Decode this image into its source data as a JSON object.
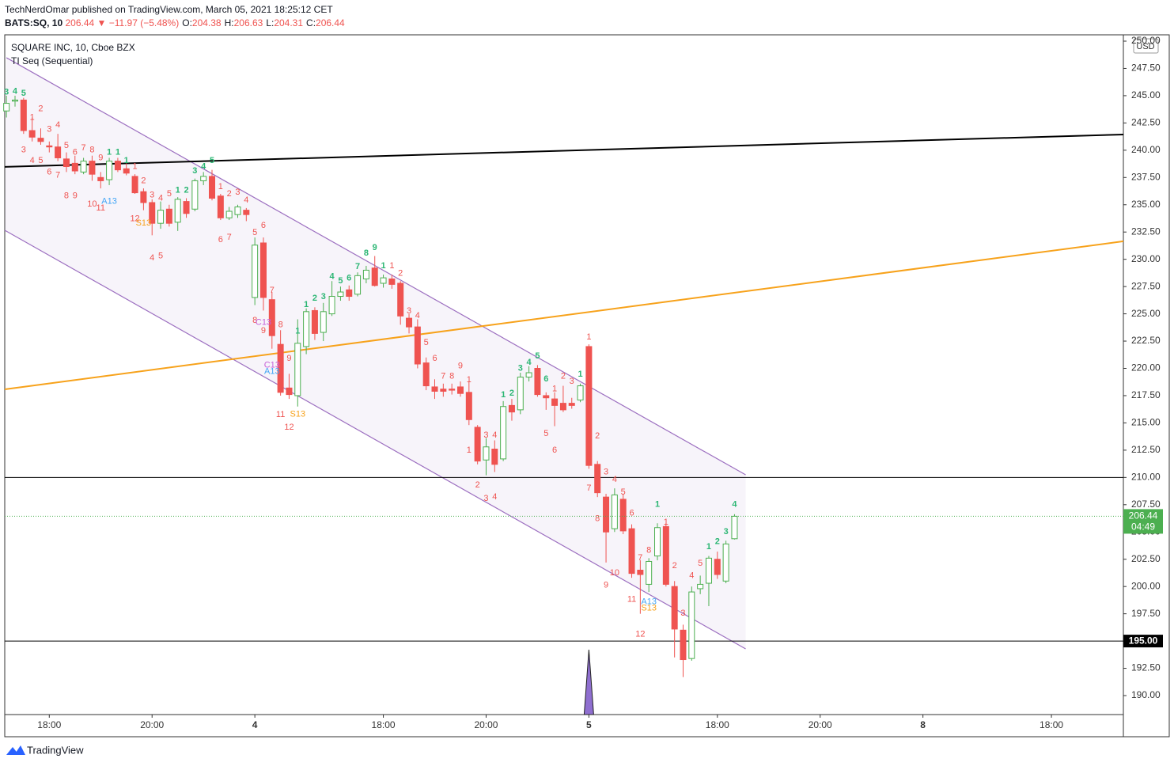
{
  "header": {
    "published": "TechNerdOmar published on TradingView.com, March 05, 2021 18:25:12 CET",
    "symbol": "BATS:SQ, 10",
    "change": "206.44 ▼ −11.97 (−5.48%)",
    "ohlc": [
      {
        "label": "O:",
        "value": "204.38"
      },
      {
        "label": "H:",
        "value": "206.63"
      },
      {
        "label": "L:",
        "value": "204.31"
      },
      {
        "label": "C:",
        "value": "206.44"
      }
    ]
  },
  "footer": {
    "brand": "TradingView"
  },
  "chart_data": {
    "type": "candlestick",
    "title": "SQUARE INC, 10, Cboe BZX",
    "subtitle": "TI Seq (Sequential)",
    "currency": "USD",
    "up_color": "#4caf50",
    "down_color": "#ef5350",
    "x": [
      0,
      1,
      2,
      3,
      4,
      5,
      6,
      7,
      8,
      9,
      10,
      11,
      12,
      13,
      14,
      15,
      16,
      17,
      18,
      19,
      20,
      21,
      22,
      23,
      24,
      25,
      26,
      27,
      28,
      29,
      30,
      31,
      32,
      33,
      34,
      35,
      36,
      37,
      38,
      39,
      40,
      41,
      42,
      43,
      44,
      45,
      46,
      47,
      48,
      49,
      50,
      51,
      52,
      53,
      54,
      55,
      56,
      57,
      58,
      59,
      60,
      61,
      62,
      63,
      64,
      65,
      66,
      67,
      68,
      69,
      70,
      71,
      72,
      73,
      74,
      75,
      76,
      77,
      78,
      79,
      80,
      81,
      82,
      83,
      84,
      85
    ],
    "open": [
      243.6,
      244.5,
      244.6,
      241.8,
      241.1,
      240.4,
      240.3,
      239.2,
      238.8,
      238,
      239,
      237.5,
      237.3,
      239,
      238.3,
      237.6,
      236.2,
      235.2,
      233.3,
      234.6,
      233.4,
      235.3,
      234.6,
      237.2,
      237.6,
      235.8,
      233.8,
      234.1,
      234.5,
      226.5,
      231.5,
      226.3,
      222.2,
      218.2,
      217.5,
      222,
      225.3,
      223.3,
      225,
      226.6,
      227.2,
      226.8,
      228.2,
      229.2,
      227.8,
      228.2,
      227.8,
      224.6,
      223.8,
      220.5,
      218.3,
      218.1,
      218.1,
      218.3,
      217.8,
      214.6,
      211.6,
      212.6,
      211.7,
      216.6,
      216.2,
      219.2,
      220,
      217.5,
      217.2,
      216.8,
      216.8,
      217.1,
      222,
      211.2,
      208.2,
      205.3,
      208,
      205.3,
      201.5,
      200.2,
      202.8,
      205.5,
      200,
      196,
      193.4,
      199.8,
      200.3,
      202.5,
      200.5,
      204.38
    ],
    "high": [
      245,
      245,
      244.8,
      243,
      242,
      240.8,
      241.5,
      239.8,
      239.5,
      239.3,
      239.5,
      238,
      239.3,
      239.3,
      238.8,
      237.8,
      236.5,
      235.5,
      235.3,
      235,
      235.7,
      235.6,
      237.4,
      238,
      238.2,
      236,
      234.8,
      235,
      234.7,
      232,
      232,
      227,
      223.5,
      219.5,
      224.5,
      225.5,
      225.6,
      226,
      228,
      227.5,
      227.6,
      228.8,
      229.4,
      230.3,
      228.6,
      228.6,
      228,
      225,
      224.5,
      221,
      219,
      218.6,
      218.6,
      218.8,
      218.8,
      214.8,
      213.6,
      213.4,
      217,
      217.2,
      219.6,
      220.2,
      220.3,
      217.8,
      217.8,
      218.4,
      217.3,
      218.6,
      222.2,
      211.5,
      208.5,
      209,
      208.5,
      205.7,
      202.4,
      202.6,
      205.8,
      205.8,
      200.5,
      196.5,
      200,
      201,
      202.8,
      203.2,
      204.2,
      206.63
    ],
    "low": [
      243,
      244,
      241.5,
      240.8,
      240.5,
      239.8,
      239,
      238,
      237.8,
      237.8,
      237.2,
      236.5,
      236.8,
      238,
      237.7,
      236,
      234.5,
      232.2,
      232.8,
      233,
      232.6,
      233.8,
      234.4,
      236.8,
      235.4,
      233.6,
      233.6,
      233.8,
      233.5,
      225.8,
      225.3,
      221.8,
      217.5,
      217.2,
      216.5,
      221.3,
      222.6,
      222.5,
      224.8,
      226.2,
      226.2,
      226.6,
      227.8,
      227.5,
      227.4,
      227.3,
      224,
      223.2,
      220,
      218,
      217.2,
      217.4,
      217.6,
      217.4,
      214.8,
      211.2,
      210.2,
      210.5,
      211.5,
      215.2,
      215.8,
      218.8,
      217.4,
      216.2,
      214.7,
      216,
      216.3,
      216.9,
      210.8,
      208.2,
      202.2,
      205,
      204.8,
      200.8,
      197.5,
      199.5,
      202.4,
      200,
      193.5,
      191.7,
      193.2,
      199.3,
      198.2,
      200.7,
      200.3,
      204.31
    ],
    "close": [
      244.3,
      244.6,
      241.8,
      241.2,
      240.8,
      240.3,
      239.3,
      238.5,
      238.1,
      239,
      237.8,
      237.2,
      239,
      238.2,
      237.9,
      236.1,
      235.2,
      233.3,
      234.5,
      233.3,
      235.5,
      234.2,
      237.2,
      237.6,
      235.6,
      233.8,
      234.4,
      234.8,
      234.1,
      231.3,
      226.5,
      223,
      217.8,
      217.6,
      222.3,
      225.2,
      223.2,
      225.2,
      226.6,
      227,
      226.6,
      228.5,
      229,
      227.6,
      228.3,
      227.7,
      224.8,
      223.8,
      220.4,
      218.4,
      217.9,
      217.9,
      218,
      217.7,
      215.3,
      211.5,
      212.8,
      211.2,
      216.5,
      216,
      219.2,
      219.6,
      217.6,
      217.3,
      216.6,
      216.2,
      216.6,
      218.4,
      211.1,
      208.6,
      205,
      208.4,
      205.1,
      201.2,
      201.1,
      202.3,
      205.4,
      200.2,
      196.1,
      193.3,
      199.5,
      200.2,
      202.6,
      201.1,
      203.9,
      206.44
    ],
    "xlim": [
      -0.2,
      130.4
    ],
    "xticks": [
      {
        "value": 5,
        "label": "18:00"
      },
      {
        "value": 17,
        "label": "20:00"
      },
      {
        "value": 29,
        "label": "4"
      },
      {
        "value": 44,
        "label": "18:00"
      },
      {
        "value": 56,
        "label": "20:00"
      },
      {
        "value": 68,
        "label": "5"
      },
      {
        "value": 83,
        "label": "18:00"
      },
      {
        "value": 95,
        "label": "20:00"
      },
      {
        "value": 107,
        "label": "8"
      },
      {
        "value": 122,
        "label": "18:00"
      }
    ],
    "ylim": [
      188.26,
      250.58
    ],
    "yticks": [
      {
        "value": 190,
        "label": "190.00"
      },
      {
        "value": 192.5,
        "label": "192.50"
      },
      {
        "value": 195,
        "label": "195.00"
      },
      {
        "value": 197.5,
        "label": "197.50"
      },
      {
        "value": 200,
        "label": "200.00"
      },
      {
        "value": 202.5,
        "label": "202.50"
      },
      {
        "value": 205,
        "label": "205.00"
      },
      {
        "value": 207.5,
        "label": "207.50"
      },
      {
        "value": 210,
        "label": "210.00"
      },
      {
        "value": 212.5,
        "label": "212.50"
      },
      {
        "value": 215,
        "label": "215.00"
      },
      {
        "value": 217.5,
        "label": "217.50"
      },
      {
        "value": 220,
        "label": "220.00"
      },
      {
        "value": 222.5,
        "label": "222.50"
      },
      {
        "value": 225,
        "label": "225.00"
      },
      {
        "value": 227.5,
        "label": "227.50"
      },
      {
        "value": 230,
        "label": "230.00"
      },
      {
        "value": 232.5,
        "label": "232.50"
      },
      {
        "value": 235,
        "label": "235.00"
      },
      {
        "value": 237.5,
        "label": "237.50"
      },
      {
        "value": 240,
        "label": "240.00"
      },
      {
        "value": 242.5,
        "label": "242.50"
      },
      {
        "value": 245,
        "label": "245.00"
      },
      {
        "value": 247.5,
        "label": "247.50"
      },
      {
        "value": 250,
        "label": "250.00"
      }
    ],
    "last_price": {
      "value": 206.44,
      "label": "206.44",
      "countdown": "04:49",
      "color": "#4caf50"
    },
    "hlines": [
      {
        "value": 210,
        "color": "#000000"
      },
      {
        "value": 195,
        "label": "195.00",
        "color": "#000000"
      }
    ],
    "trendlines": [
      {
        "x": [
          -0.2,
          130.4
        ],
        "y": [
          238.47,
          241.44
        ],
        "color": "#000000"
      },
      {
        "x": [
          -0.2,
          130.4
        ],
        "y": [
          218.08,
          231.65
        ],
        "color": "#f7a21b"
      }
    ],
    "channel": {
      "color": "#9c6fc0",
      "upper": {
        "x": [
          0,
          86.3
        ],
        "y": [
          248.48,
          210.24
        ]
      },
      "lower": {
        "x": [
          -0.2,
          86.3
        ],
        "y": [
          232.66,
          194.28
        ]
      }
    },
    "spike": {
      "x": 68,
      "color": "#8f6fd0"
    },
    "annotations": [
      {
        "color": "#2bb673",
        "points": [
          [
            0,
            245.3,
            "3"
          ],
          [
            1,
            245.4,
            "4"
          ],
          [
            2,
            245.2,
            "5"
          ],
          [
            12,
            239.8,
            "1"
          ],
          [
            13,
            239.8,
            "1"
          ],
          [
            14,
            239.05,
            "1"
          ],
          [
            20,
            236.3,
            "1"
          ],
          [
            21,
            236.3,
            "2"
          ],
          [
            22,
            238.1,
            "3"
          ],
          [
            23,
            238.5,
            "4"
          ],
          [
            24,
            239.05,
            "5"
          ],
          [
            34,
            223.4,
            "1"
          ],
          [
            35,
            225.85,
            "1"
          ],
          [
            36,
            226.4,
            "2"
          ],
          [
            37,
            226.55,
            "3"
          ],
          [
            38,
            228.4,
            "4"
          ],
          [
            39,
            228.0,
            "5"
          ],
          [
            40,
            228.25,
            "6"
          ],
          [
            41,
            229.3,
            "7"
          ],
          [
            42,
            230.55,
            "8"
          ],
          [
            43,
            231.05,
            "9"
          ],
          [
            44,
            229.4,
            "1"
          ],
          [
            58,
            217.55,
            "1"
          ],
          [
            59,
            217.7,
            "2"
          ],
          [
            60,
            220.0,
            "3"
          ],
          [
            61,
            220.55,
            "4"
          ],
          [
            62,
            221.1,
            "5"
          ],
          [
            63,
            219.0,
            "6"
          ],
          [
            67,
            219.45,
            "1"
          ],
          [
            76,
            207.5,
            "1"
          ],
          [
            82,
            203.65,
            "1"
          ],
          [
            83,
            204.1,
            "2"
          ],
          [
            84,
            205.0,
            "3"
          ],
          [
            85,
            207.5,
            "4"
          ]
        ]
      },
      {
        "color": "#ef5350",
        "points": [
          [
            4,
            243.8,
            "2"
          ],
          [
            3,
            243.0,
            "1"
          ],
          [
            5,
            241.9,
            "3"
          ],
          [
            6,
            242.3,
            "4"
          ],
          [
            2,
            240.0,
            "3"
          ],
          [
            7,
            240.4,
            "5"
          ],
          [
            8,
            239.8,
            "6"
          ],
          [
            9,
            240.2,
            "7"
          ],
          [
            10,
            240.0,
            "8"
          ],
          [
            11,
            239.3,
            "9"
          ],
          [
            3,
            239.05,
            "4"
          ],
          [
            4,
            239.05,
            "5"
          ],
          [
            5,
            238.0,
            "6"
          ],
          [
            6,
            237.7,
            "7"
          ],
          [
            7,
            235.8,
            "8"
          ],
          [
            8,
            235.8,
            "9"
          ],
          [
            10,
            235.05,
            "10"
          ],
          [
            11,
            234.7,
            "11"
          ],
          [
            15,
            238.5,
            "1"
          ],
          [
            16,
            237.2,
            "2"
          ],
          [
            17,
            235.9,
            "3"
          ],
          [
            18,
            235.6,
            "4"
          ],
          [
            19,
            236.0,
            "5"
          ],
          [
            15,
            233.7,
            "12"
          ],
          [
            17,
            230.1,
            "4"
          ],
          [
            18,
            230.3,
            "5"
          ],
          [
            25,
            236.65,
            "1"
          ],
          [
            26,
            236.0,
            "2"
          ],
          [
            27,
            236.15,
            "3"
          ],
          [
            28,
            235.4,
            "4"
          ],
          [
            25,
            231.8,
            "6"
          ],
          [
            26,
            232.0,
            "7"
          ],
          [
            29,
            232.45,
            "5"
          ],
          [
            30,
            233.1,
            "6"
          ],
          [
            31,
            227.15,
            "7"
          ],
          [
            29,
            224.4,
            "8"
          ],
          [
            32,
            224.0,
            "8"
          ],
          [
            30,
            223.45,
            "9"
          ],
          [
            33,
            220.9,
            "9"
          ],
          [
            32,
            215.75,
            "11"
          ],
          [
            33,
            214.6,
            "12"
          ],
          [
            45,
            229.4,
            "1"
          ],
          [
            46,
            228.7,
            "2"
          ],
          [
            47,
            225.25,
            "3"
          ],
          [
            48,
            224.8,
            "4"
          ],
          [
            49,
            222.35,
            "5"
          ],
          [
            50,
            220.9,
            "6"
          ],
          [
            51,
            219.25,
            "7"
          ],
          [
            52,
            219.25,
            "8"
          ],
          [
            53,
            220.2,
            "9"
          ],
          [
            54,
            218.95,
            "1"
          ],
          [
            54,
            212.5,
            "1"
          ],
          [
            55,
            209.3,
            "2"
          ],
          [
            56,
            208.05,
            "3"
          ],
          [
            57,
            208.2,
            "4"
          ],
          [
            56,
            213.85,
            "3"
          ],
          [
            57,
            213.85,
            "4"
          ],
          [
            63,
            214.0,
            "5"
          ],
          [
            64,
            212.5,
            "6"
          ],
          [
            64,
            218.1,
            "1"
          ],
          [
            65,
            219.25,
            "2"
          ],
          [
            66,
            218.8,
            "3"
          ],
          [
            68,
            222.85,
            "1"
          ],
          [
            69,
            213.8,
            "2"
          ],
          [
            70,
            210.5,
            "3"
          ],
          [
            71,
            209.8,
            "4"
          ],
          [
            72,
            208.65,
            "5"
          ],
          [
            73,
            206.7,
            "6"
          ],
          [
            68,
            209.0,
            "7"
          ],
          [
            69,
            206.2,
            "8"
          ],
          [
            70,
            200.1,
            "9"
          ],
          [
            71,
            201.25,
            "10"
          ],
          [
            74,
            202.6,
            "7"
          ],
          [
            75,
            203.3,
            "8"
          ],
          [
            73,
            198.8,
            "11"
          ],
          [
            74,
            195.6,
            "12"
          ],
          [
            77,
            205.9,
            "1"
          ],
          [
            78,
            201.9,
            "2"
          ],
          [
            79,
            197.55,
            "3"
          ],
          [
            80,
            201.0,
            "4"
          ],
          [
            81,
            202.1,
            "5"
          ]
        ]
      },
      {
        "color": "#f7a21b",
        "points": [
          [
            16,
            233.3,
            "S13"
          ],
          [
            34,
            215.8,
            "S13"
          ],
          [
            75,
            198.0,
            "S13"
          ]
        ]
      },
      {
        "color": "#42a5f5",
        "points": [
          [
            12,
            235.3,
            "A13"
          ],
          [
            31,
            219.7,
            "A13"
          ],
          [
            75,
            198.6,
            "A13"
          ]
        ]
      },
      {
        "color": "#c660d8",
        "points": [
          [
            30,
            224.2,
            "C13"
          ],
          [
            31,
            220.3,
            "C13"
          ]
        ]
      }
    ]
  }
}
